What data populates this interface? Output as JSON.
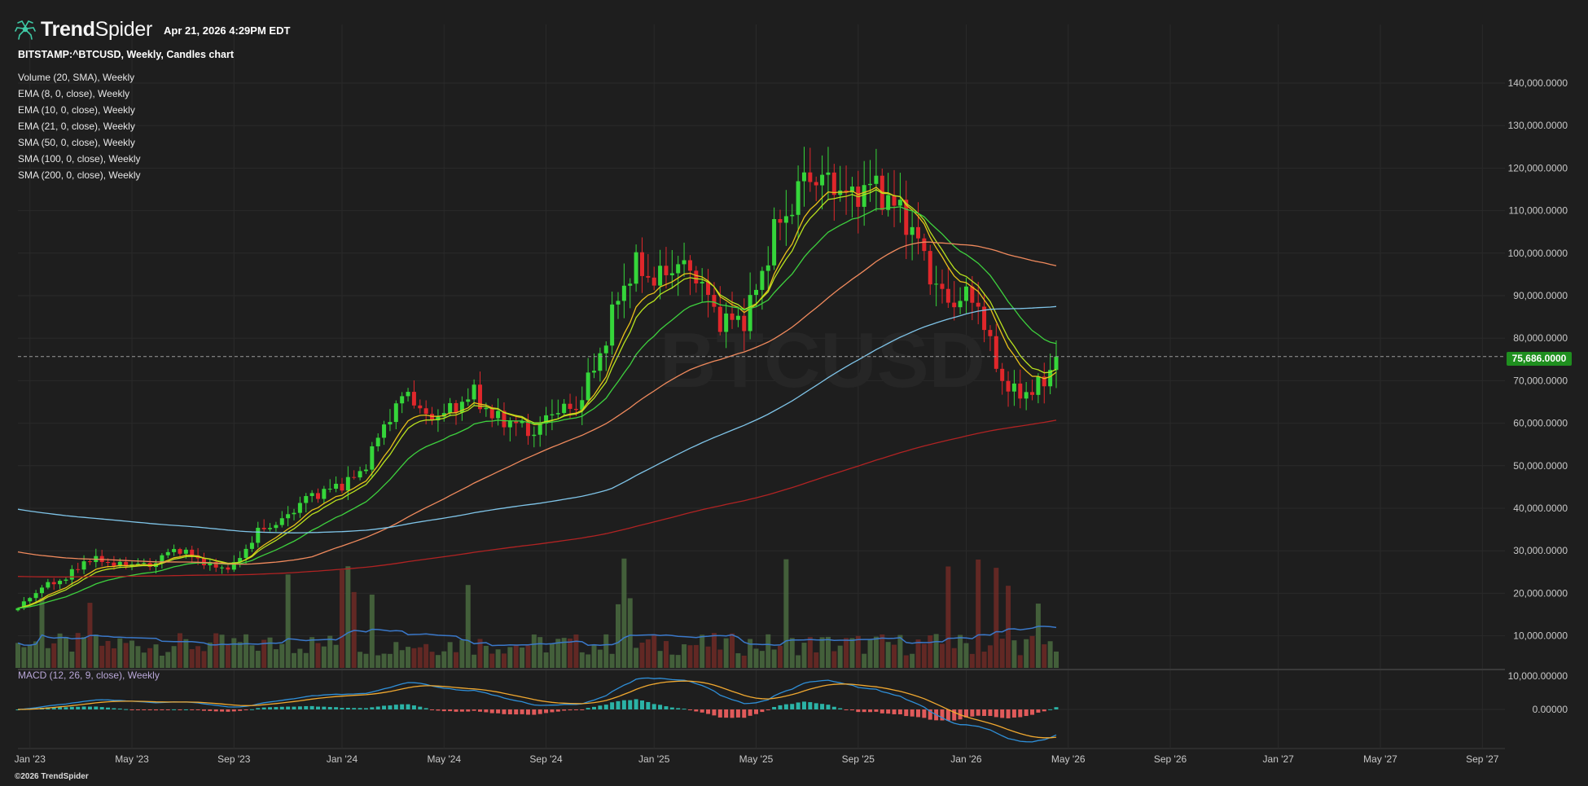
{
  "header": {
    "brand_bold": "Trend",
    "brand_regular": "Spider",
    "datetime": "Apr 21, 2026 4:29PM EDT"
  },
  "symbol_title": "BITSTAMP:^BTCUSD, Weekly, Candles chart",
  "legend": [
    {
      "label": "Volume (20, SMA), Weekly",
      "color": "#3a78c9"
    },
    {
      "label": "EMA (8, 0, close), Weekly",
      "color": "#e8c21a"
    },
    {
      "label": "EMA (10, 0, close), Weekly",
      "color": "#b9e21e"
    },
    {
      "label": "EMA (21, 0, close), Weekly",
      "color": "#3ed13e"
    },
    {
      "label": "SMA (50, 0, close), Weekly",
      "color": "#f08a5d"
    },
    {
      "label": "SMA (100, 0, close), Weekly",
      "color": "#7fc4e8"
    },
    {
      "label": "SMA (200, 0, close), Weekly",
      "color": "#b02323"
    }
  ],
  "last_price": "75,686.0000",
  "macd_label": "MACD (12, 26, 9, close), Weekly",
  "copyright": "©2026 TrendSpider",
  "colors": {
    "background": "#1e1e1e",
    "bull": "#35d63a",
    "bear": "#e0272b",
    "macd_pos": "#2bb3a6",
    "macd_neg": "#e05a5a",
    "macd_line": "#2f8fd8",
    "signal_line": "#f0a830",
    "price_tag": "#1f8f1f"
  },
  "chart_data": {
    "type": "candlestick",
    "title": "BITSTAMP:^BTCUSD, Weekly, Candles chart",
    "ylim": [
      10000,
      145000
    ],
    "y_ticks": [
      "140,000.0000",
      "130,000.0000",
      "120,000.0000",
      "110,000.0000",
      "100,000.0000",
      "90,000.0000",
      "80,000.0000",
      "70,000.0000",
      "60,000.0000",
      "50,000.0000",
      "40,000.0000",
      "30,000.0000",
      "20,000.0000",
      "10,000.0000"
    ],
    "y_tick_values": [
      140000,
      130000,
      120000,
      110000,
      100000,
      90000,
      80000,
      70000,
      60000,
      50000,
      40000,
      30000,
      20000,
      10000
    ],
    "x_ticks": [
      "Jan '23",
      "May '23",
      "Sep '23",
      "Jan '24",
      "May '24",
      "Sep '24",
      "Jan '25",
      "May '25",
      "Sep '25",
      "Jan '26",
      "May '26",
      "Sep '26",
      "Jan '27",
      "May '27",
      "Sep '27"
    ],
    "x_tick_weeks": [
      2,
      19,
      36,
      54,
      71,
      88,
      106,
      123,
      140,
      158,
      175,
      192,
      210,
      227,
      244
    ],
    "last_price": 75686,
    "price_anchors": [
      [
        0,
        16500
      ],
      [
        4,
        21500
      ],
      [
        8,
        23500
      ],
      [
        11,
        27500
      ],
      [
        14,
        28000
      ],
      [
        16,
        26500
      ],
      [
        19,
        27000
      ],
      [
        22,
        26500
      ],
      [
        26,
        30500
      ],
      [
        29,
        29000
      ],
      [
        32,
        26500
      ],
      [
        34,
        26000
      ],
      [
        36,
        26500
      ],
      [
        40,
        34500
      ],
      [
        44,
        37000
      ],
      [
        48,
        42500
      ],
      [
        53,
        45000
      ],
      [
        57,
        48000
      ],
      [
        62,
        62000
      ],
      [
        65,
        67500
      ],
      [
        68,
        61000
      ],
      [
        72,
        63000
      ],
      [
        76,
        67000
      ],
      [
        79,
        61500
      ],
      [
        83,
        60000
      ],
      [
        86,
        57500
      ],
      [
        89,
        63000
      ],
      [
        93,
        63500
      ],
      [
        96,
        73000
      ],
      [
        98,
        80000
      ],
      [
        100,
        90000
      ],
      [
        103,
        97000
      ],
      [
        106,
        93500
      ],
      [
        110,
        97500
      ],
      [
        113,
        95000
      ],
      [
        117,
        84000
      ],
      [
        121,
        84500
      ],
      [
        124,
        95000
      ],
      [
        126,
        105500
      ],
      [
        128,
        108500
      ],
      [
        131,
        118000
      ],
      [
        135,
        117000
      ],
      [
        139,
        113000
      ],
      [
        142,
        116500
      ],
      [
        147,
        110000
      ],
      [
        150,
        103000
      ],
      [
        152,
        95000
      ],
      [
        155,
        88000
      ],
      [
        158,
        90000
      ],
      [
        160,
        88000
      ],
      [
        162,
        78000
      ],
      [
        164,
        70000
      ],
      [
        166,
        67000
      ],
      [
        169,
        67500
      ],
      [
        171,
        70000
      ],
      [
        173,
        75686
      ]
    ],
    "macd_ylim": [
      -10000,
      10000
    ],
    "macd_y_ticks": [
      "10,000.00000",
      "0.00000"
    ],
    "macd_y_tick_values": [
      10000,
      0
    ],
    "volume_note": "Volume (20, SMA), Weekly"
  }
}
